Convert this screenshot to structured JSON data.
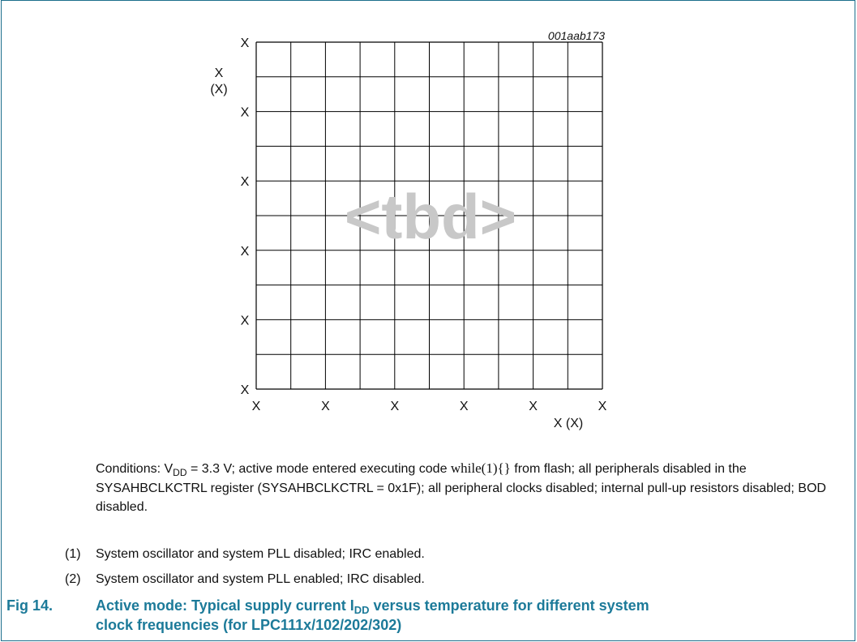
{
  "chart_data": {
    "type": "line",
    "watermark": "<tbd>",
    "figure_id": "001aab173",
    "ylabel": "X",
    "ylabel_unit": "(X)",
    "xlabel": "X (X)",
    "y_tick_labels": [
      "X",
      "X",
      "X",
      "X",
      "X",
      "X"
    ],
    "x_tick_labels": [
      "X",
      "X",
      "X",
      "X",
      "X",
      "X"
    ],
    "grid": true,
    "series": []
  },
  "conditions": {
    "prefix": "Conditions: V",
    "subscript": "DD",
    "after_sub": " = 3.3 V; active mode entered executing code ",
    "code": "while(1){}",
    "rest": " from flash; all peripherals disabled in the SYSAHBCLKCTRL register (SYSAHBCLKCTRL = 0x1F); all peripheral clocks disabled; internal pull-up resistors disabled; BOD disabled."
  },
  "notes": [
    {
      "number": "(1)",
      "text": "System oscillator and system PLL disabled; IRC enabled."
    },
    {
      "number": "(2)",
      "text": "System oscillator and system PLL enabled; IRC disabled."
    }
  ],
  "caption": {
    "label": "Fig 14.",
    "text_before_sub": "Active mode: Typical supply current I",
    "subscript": "DD",
    "text_after_sub": " versus temperature for different system",
    "line2": "clock frequencies (for LPC111x/102/202/302)"
  },
  "colors": {
    "caption": "#1c7a99",
    "frame": "#1c6e8c",
    "watermark": "#c8c8c8",
    "grid": "#000000"
  }
}
